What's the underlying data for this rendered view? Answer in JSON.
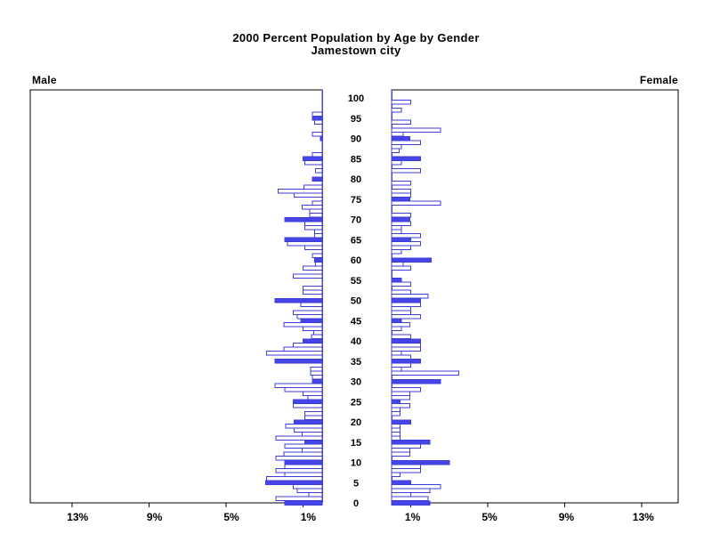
{
  "title": {
    "line1": "2000 Percent Population by Age by Gender",
    "line2": "Jamestown city"
  },
  "panels": {
    "left_label": "Male",
    "right_label": "Female"
  },
  "axes": {
    "x_tick_percents": [
      1,
      5,
      9,
      13
    ],
    "x_tick_labels": [
      "1%",
      "5%",
      "9%",
      "13%"
    ],
    "age_tick_labels": [
      "0",
      "5",
      "10",
      "15",
      "20",
      "25",
      "30",
      "35",
      "40",
      "45",
      "50",
      "55",
      "60",
      "65",
      "70",
      "75",
      "80",
      "85",
      "90",
      "95",
      "100"
    ],
    "x_max_percent": 15
  },
  "colors": {
    "bar_fill": "#4646e8",
    "bar_outline": "#3c3cd8",
    "inner_axis": "#4646e8",
    "frame": "#000000",
    "background": "#ffffff"
  },
  "chart_data": {
    "type": "bar",
    "subtype": "population-pyramid",
    "unit": "percent of population",
    "title": "2000 Percent Population by Age by Gender",
    "subtitle": "Jamestown city",
    "age_axis": {
      "min": 0,
      "max": 100,
      "label_step": 5
    },
    "x_axis": {
      "ticks_percent": [
        1,
        5,
        9,
        13
      ],
      "range_percent": [
        0,
        15
      ]
    },
    "solid_bar_rule": "bars for ages divisible by 5 are solid filled; all other ages are white with blue outline",
    "ages": [
      0,
      1,
      2,
      3,
      4,
      5,
      6,
      7,
      8,
      9,
      10,
      11,
      12,
      13,
      14,
      15,
      16,
      17,
      18,
      19,
      20,
      21,
      22,
      23,
      24,
      25,
      26,
      27,
      28,
      29,
      30,
      31,
      32,
      33,
      34,
      35,
      36,
      37,
      38,
      39,
      40,
      41,
      42,
      43,
      44,
      45,
      46,
      47,
      48,
      49,
      50,
      51,
      52,
      53,
      54,
      55,
      56,
      57,
      58,
      59,
      60,
      61,
      62,
      63,
      64,
      65,
      66,
      67,
      68,
      69,
      70,
      71,
      72,
      73,
      74,
      75,
      76,
      77,
      78,
      79,
      80,
      81,
      82,
      83,
      84,
      85,
      86,
      87,
      88,
      89,
      90,
      91,
      92,
      93,
      94,
      95,
      96,
      97,
      98,
      99,
      100
    ],
    "series": [
      {
        "name": "Male",
        "side": "left",
        "values": [
          1.95,
          2.4,
          0.7,
          1.3,
          1.5,
          2.95,
          2.9,
          1.95,
          2.4,
          1.95,
          1.95,
          2.4,
          2.0,
          1.05,
          1.95,
          0.9,
          2.4,
          1.05,
          1.45,
          1.9,
          1.45,
          0.9,
          0.9,
          0,
          1.5,
          1.5,
          0.75,
          1.0,
          1.95,
          2.45,
          0.5,
          0.5,
          0.6,
          0.6,
          0,
          2.45,
          0,
          2.9,
          2.0,
          1.5,
          1.0,
          0.55,
          0.45,
          1.0,
          2.0,
          1.1,
          1.3,
          1.5,
          0,
          1.1,
          2.45,
          0,
          1.0,
          1.0,
          0,
          0,
          1.5,
          0,
          1.0,
          0.35,
          0.4,
          0.5,
          0,
          0.9,
          1.8,
          1.95,
          0.4,
          0.4,
          0.9,
          0.9,
          1.95,
          0.65,
          0.65,
          1.05,
          0.5,
          0,
          1.45,
          2.3,
          0.95,
          0,
          0.5,
          0,
          0.35,
          0,
          0.9,
          1.0,
          0.5,
          0,
          0,
          0,
          0.1,
          0.5,
          0,
          0,
          0.4,
          0.5,
          0.5,
          0,
          0,
          0,
          0
        ]
      },
      {
        "name": "Female",
        "side": "right",
        "values": [
          2.0,
          1.9,
          1.0,
          2.0,
          2.55,
          1.0,
          0,
          0.45,
          1.5,
          1.5,
          3.0,
          0,
          0.95,
          0.95,
          1.5,
          2.0,
          0.45,
          0.45,
          0.45,
          0.45,
          1.0,
          0,
          0.45,
          0.45,
          0.95,
          0.45,
          0.95,
          0.95,
          1.5,
          0,
          2.55,
          0,
          3.5,
          0.5,
          1.0,
          1.5,
          1.0,
          0.5,
          1.5,
          1.5,
          1.5,
          1.0,
          0,
          0.5,
          0.95,
          0.5,
          1.5,
          1.0,
          1.0,
          1.5,
          1.5,
          1.9,
          1.0,
          0,
          1.0,
          0.5,
          0,
          0,
          1.0,
          0.6,
          2.05,
          0,
          0.5,
          1.0,
          1.5,
          1.0,
          1.5,
          0.5,
          0.5,
          1.0,
          0.95,
          1.0,
          0,
          0,
          2.55,
          0.95,
          1.0,
          1.0,
          0,
          1.0,
          0,
          0,
          1.5,
          0,
          0.5,
          1.5,
          0,
          0.4,
          0.5,
          1.5,
          0.95,
          0.6,
          2.55,
          0,
          1.0,
          0,
          0,
          0.5,
          0,
          1.0,
          0
        ]
      }
    ]
  }
}
